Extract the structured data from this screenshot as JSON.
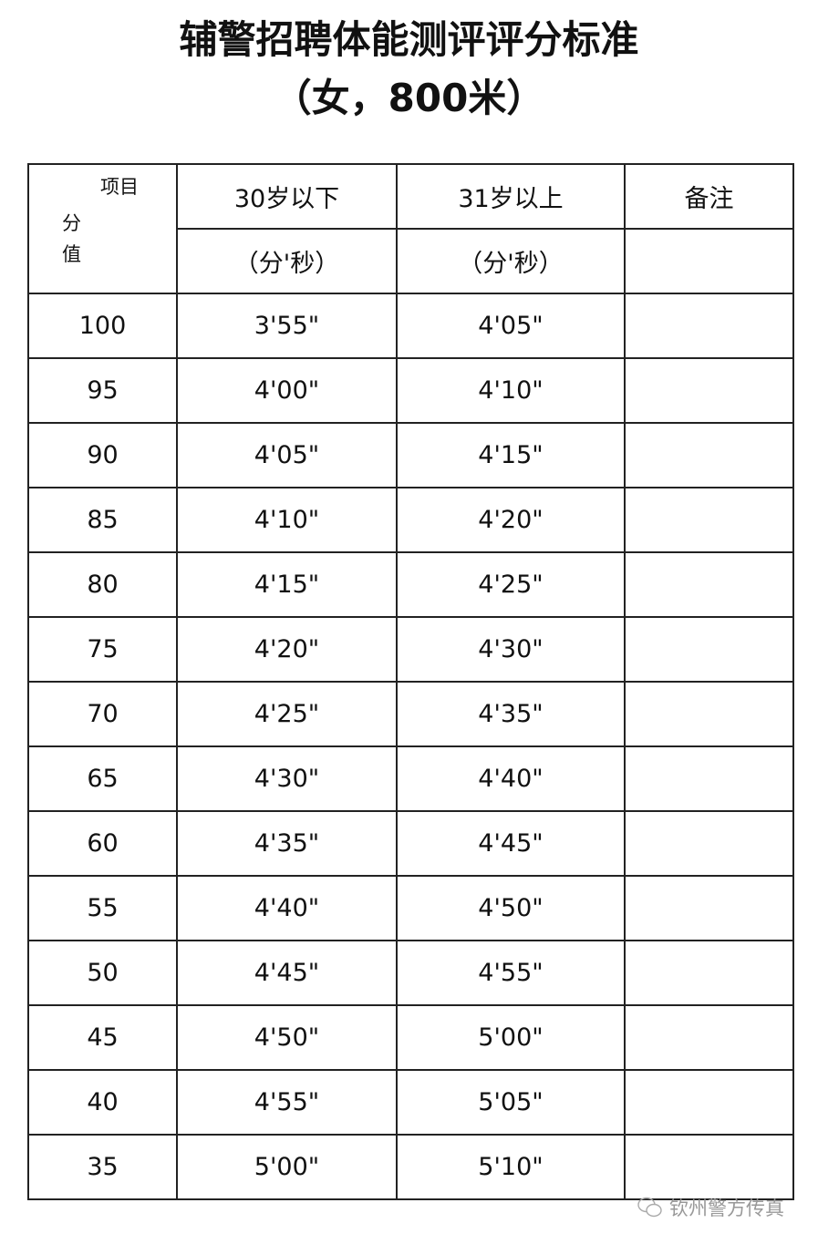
{
  "title": {
    "line1": "辅警招聘体能测评评分标准",
    "line2": "（女，800米）"
  },
  "table": {
    "corner": {
      "top": "项目",
      "left1": "分",
      "left2": "值"
    },
    "headers": {
      "col1": "30岁以下",
      "col2": "31岁以上",
      "col3": "备注",
      "unit1": "（分'秒）",
      "unit2": "（分'秒）"
    },
    "rows": [
      {
        "score": "100",
        "under30": "3'55\"",
        "over31": "4'05\""
      },
      {
        "score": "95",
        "under30": "4'00\"",
        "over31": "4'10\""
      },
      {
        "score": "90",
        "under30": "4'05\"",
        "over31": "4'15\""
      },
      {
        "score": "85",
        "under30": "4'10\"",
        "over31": "4'20\""
      },
      {
        "score": "80",
        "under30": "4'15\"",
        "over31": "4'25\""
      },
      {
        "score": "75",
        "under30": "4'20\"",
        "over31": "4'30\""
      },
      {
        "score": "70",
        "under30": "4'25\"",
        "over31": "4'35\""
      },
      {
        "score": "65",
        "under30": "4'30\"",
        "over31": "4'40\""
      },
      {
        "score": "60",
        "under30": "4'35\"",
        "over31": "4'45\""
      },
      {
        "score": "55",
        "under30": "4'40\"",
        "over31": "4'50\""
      },
      {
        "score": "50",
        "under30": "4'45\"",
        "over31": "4'55\""
      },
      {
        "score": "45",
        "under30": "4'50\"",
        "over31": "5'00\""
      },
      {
        "score": "40",
        "under30": "4'55\"",
        "over31": "5'05\""
      },
      {
        "score": "35",
        "under30": "5'00\"",
        "over31": "5'10\""
      }
    ]
  },
  "watermark": {
    "text": "钦州警方传真",
    "icon": "wechat-icon"
  }
}
